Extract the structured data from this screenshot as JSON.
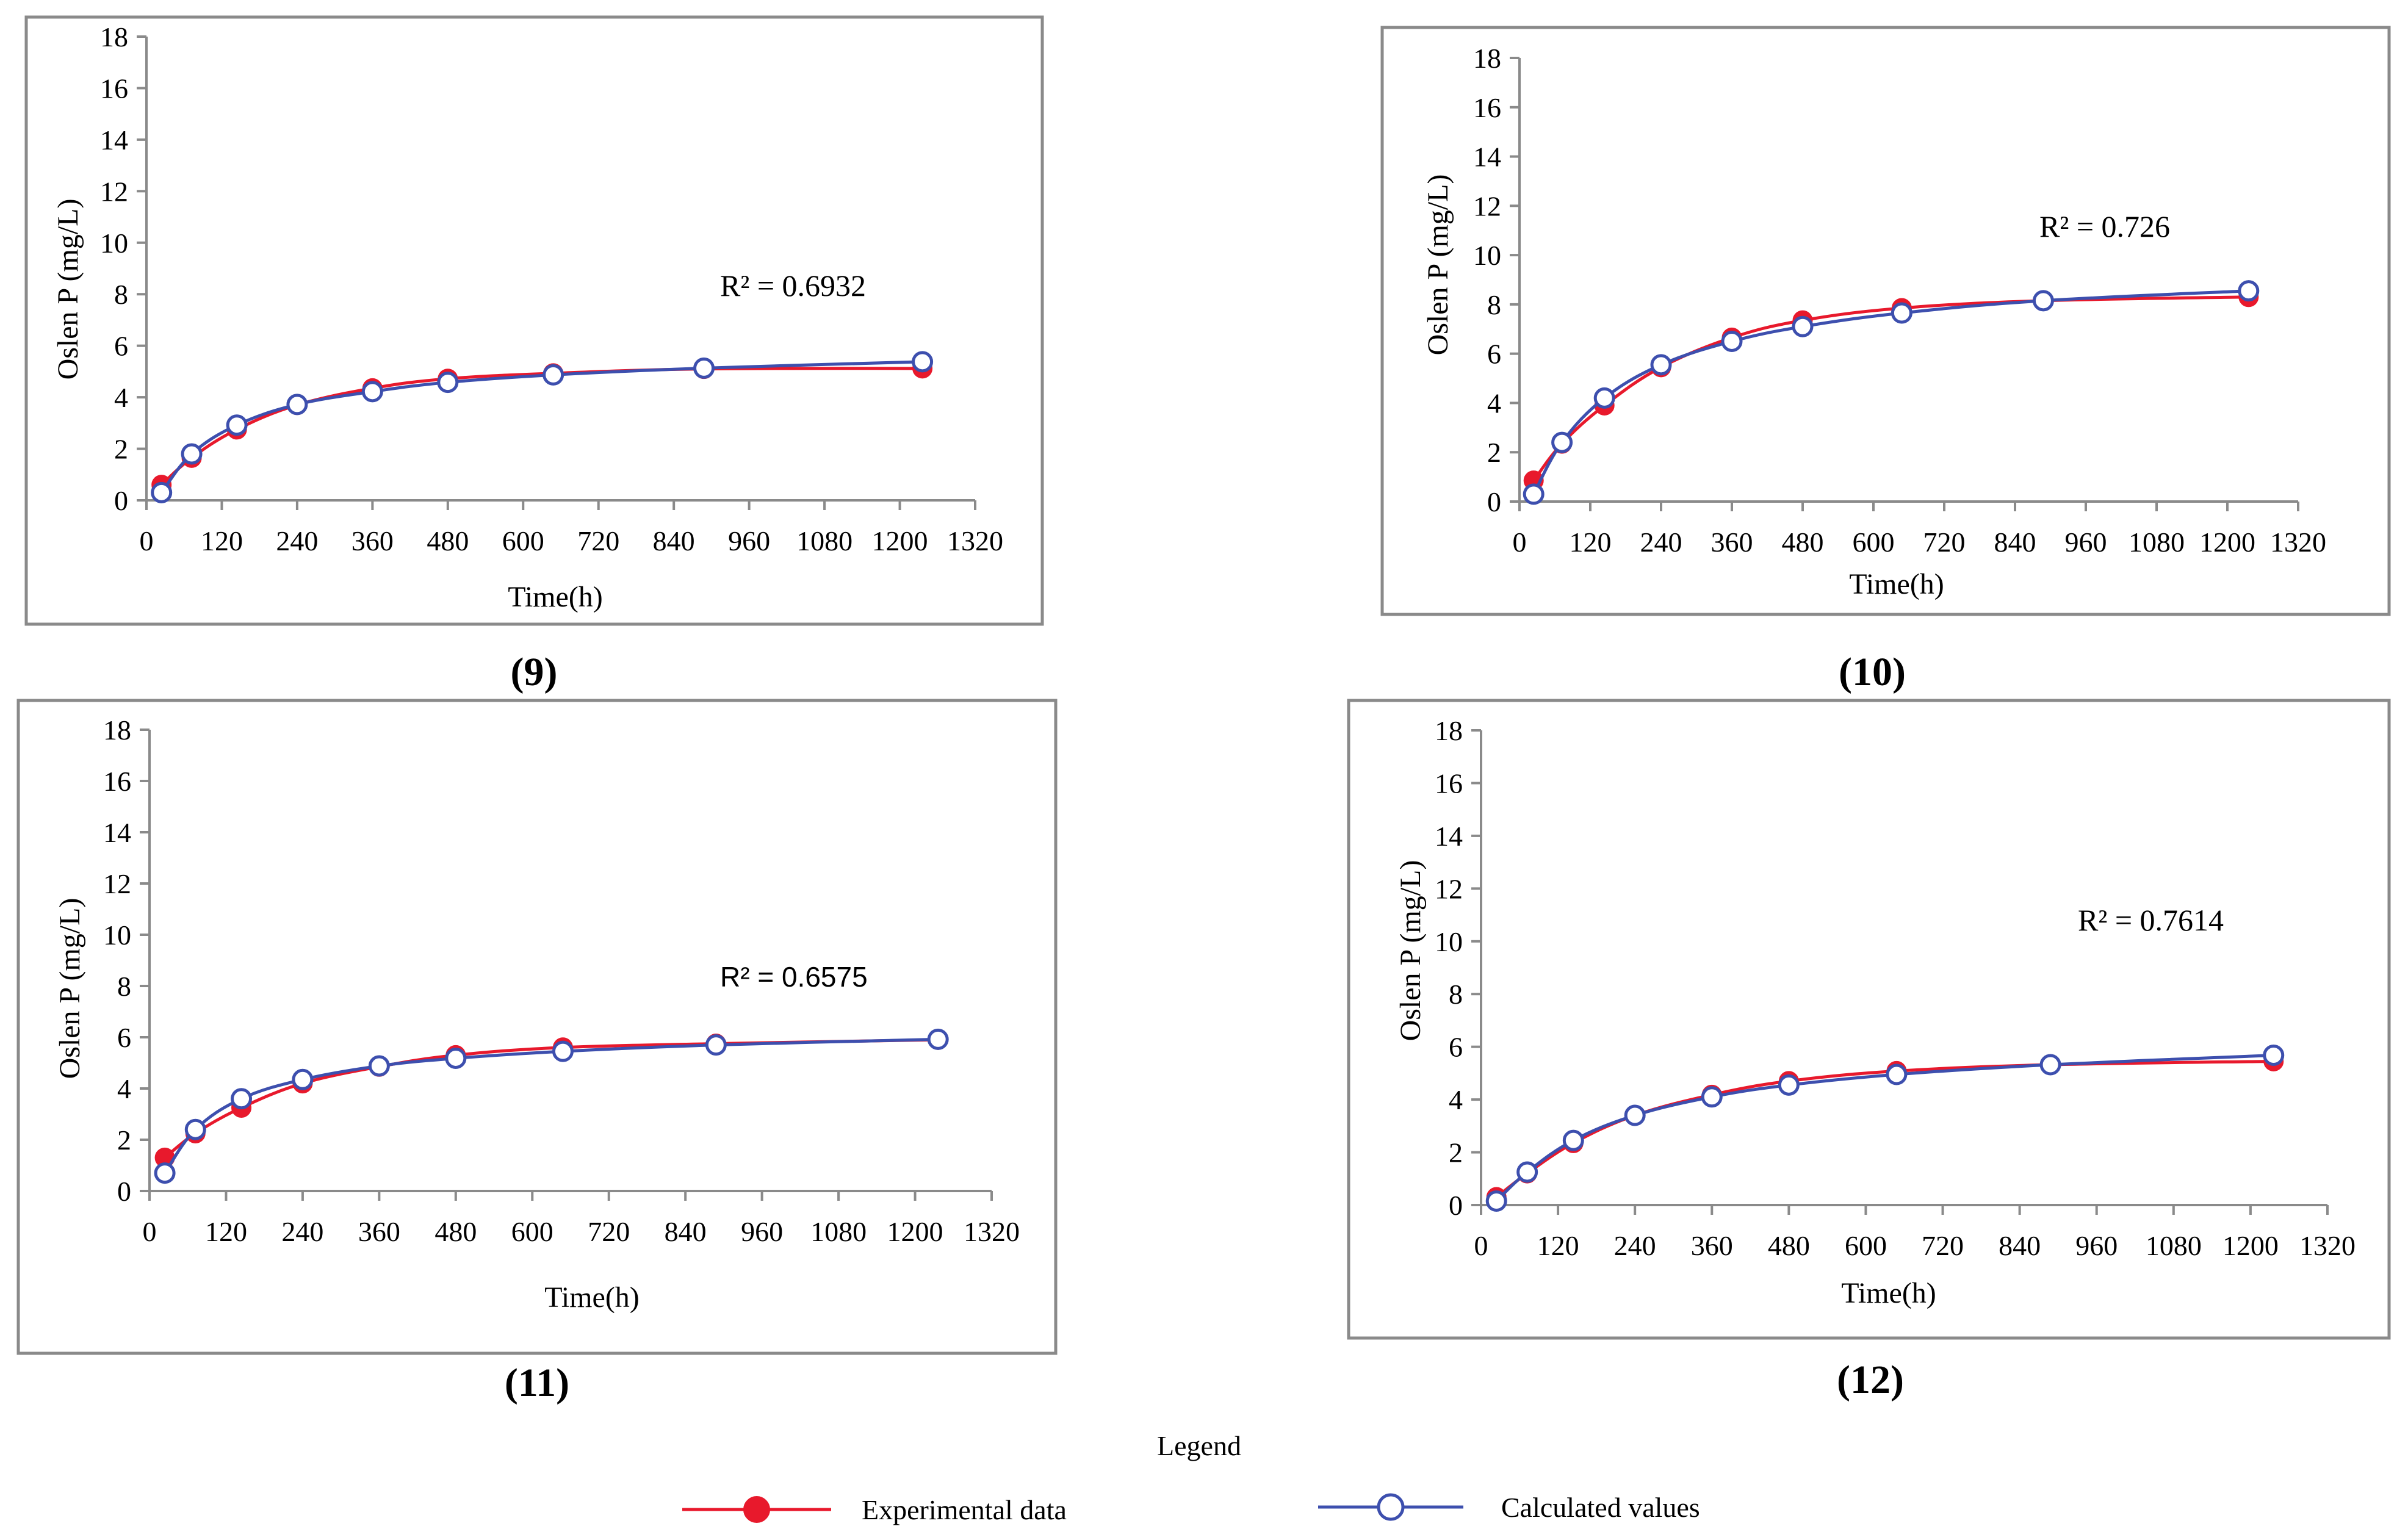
{
  "legend": {
    "title": "Legend",
    "items": [
      {
        "label": "Experimental data",
        "marker": "filled-circle",
        "color": "#e8192c"
      },
      {
        "label": "Calculated values",
        "marker": "hollow-circle",
        "color": "#3d4fae"
      }
    ]
  },
  "chart_data": [
    {
      "type": "line",
      "panel_label": "(9)",
      "xlabel": "Time(h)",
      "ylabel": "Oslen P (mg/L)",
      "xlim": [
        0,
        1320
      ],
      "ylim": [
        0,
        18
      ],
      "xticks": [
        "0",
        "120",
        "240",
        "360",
        "480",
        "600",
        "720",
        "840",
        "960",
        "1080",
        "1200",
        "1320"
      ],
      "yticks": [
        "0",
        "2",
        "4",
        "6",
        "8",
        "10",
        "12",
        "14",
        "16",
        "18"
      ],
      "annotation": "R² = 0.6932",
      "x": [
        24,
        72,
        144,
        240,
        360,
        480,
        648,
        888,
        1236
      ],
      "series": [
        {
          "name": "Experimental data",
          "values": [
            0.6,
            1.65,
            2.75,
            3.7,
            4.35,
            4.72,
            4.93,
            5.1,
            5.12
          ]
        },
        {
          "name": "Calculated values",
          "values": [
            0.3,
            1.8,
            2.92,
            3.72,
            4.22,
            4.58,
            4.87,
            5.13,
            5.38
          ]
        }
      ]
    },
    {
      "type": "line",
      "panel_label": "(10)",
      "xlabel": "Time(h)",
      "ylabel": "Oslen P (mg/L)",
      "xlim": [
        0,
        1320
      ],
      "ylim": [
        0,
        18
      ],
      "xticks": [
        "0",
        "120",
        "240",
        "360",
        "480",
        "600",
        "720",
        "840",
        "960",
        "1080",
        "1200",
        "1320"
      ],
      "yticks": [
        "0",
        "2",
        "4",
        "6",
        "8",
        "10",
        "12",
        "14",
        "16",
        "18"
      ],
      "annotation": "R² = 0.726",
      "x": [
        24,
        72,
        144,
        240,
        360,
        480,
        648,
        888,
        1236
      ],
      "series": [
        {
          "name": "Experimental data",
          "values": [
            0.85,
            2.35,
            3.9,
            5.45,
            6.65,
            7.35,
            7.85,
            8.15,
            8.3
          ]
        },
        {
          "name": "Calculated values",
          "values": [
            0.3,
            2.4,
            4.2,
            5.55,
            6.5,
            7.1,
            7.65,
            8.15,
            8.55
          ]
        }
      ]
    },
    {
      "type": "line",
      "panel_label": "(11)",
      "xlabel": "Time(h)",
      "ylabel": "Oslen P (mg/L)",
      "xlim": [
        0,
        1320
      ],
      "ylim": [
        0,
        18
      ],
      "xticks": [
        "0",
        "120",
        "240",
        "360",
        "480",
        "600",
        "720",
        "840",
        "960",
        "1080",
        "1200",
        "1320"
      ],
      "yticks": [
        "0",
        "2",
        "4",
        "6",
        "8",
        "10",
        "12",
        "14",
        "16",
        "18"
      ],
      "annotation": "R² = 0.6575",
      "x": [
        24,
        72,
        144,
        240,
        360,
        480,
        648,
        888,
        1236
      ],
      "series": [
        {
          "name": "Experimental data",
          "values": [
            1.3,
            2.25,
            3.25,
            4.2,
            4.85,
            5.3,
            5.6,
            5.75,
            5.9
          ]
        },
        {
          "name": "Calculated values",
          "values": [
            0.7,
            2.4,
            3.6,
            4.35,
            4.88,
            5.18,
            5.45,
            5.7,
            5.92
          ]
        }
      ]
    },
    {
      "type": "line",
      "panel_label": "(12)",
      "xlabel": "Time(h)",
      "ylabel": "Oslen P (mg/L)",
      "xlim": [
        0,
        1320
      ],
      "ylim": [
        0,
        18
      ],
      "xticks": [
        "0",
        "120",
        "240",
        "360",
        "480",
        "600",
        "720",
        "840",
        "960",
        "1080",
        "1200",
        "1320"
      ],
      "yticks": [
        "0",
        "2",
        "4",
        "6",
        "8",
        "10",
        "12",
        "14",
        "16",
        "18"
      ],
      "annotation": "R² = 0.7614",
      "x": [
        24,
        72,
        144,
        240,
        360,
        480,
        648,
        888,
        1236
      ],
      "series": [
        {
          "name": "Experimental data",
          "values": [
            0.3,
            1.2,
            2.35,
            3.4,
            4.18,
            4.7,
            5.08,
            5.32,
            5.45
          ]
        },
        {
          "name": "Calculated values",
          "values": [
            0.15,
            1.25,
            2.45,
            3.4,
            4.1,
            4.55,
            4.95,
            5.32,
            5.68
          ]
        }
      ]
    }
  ]
}
